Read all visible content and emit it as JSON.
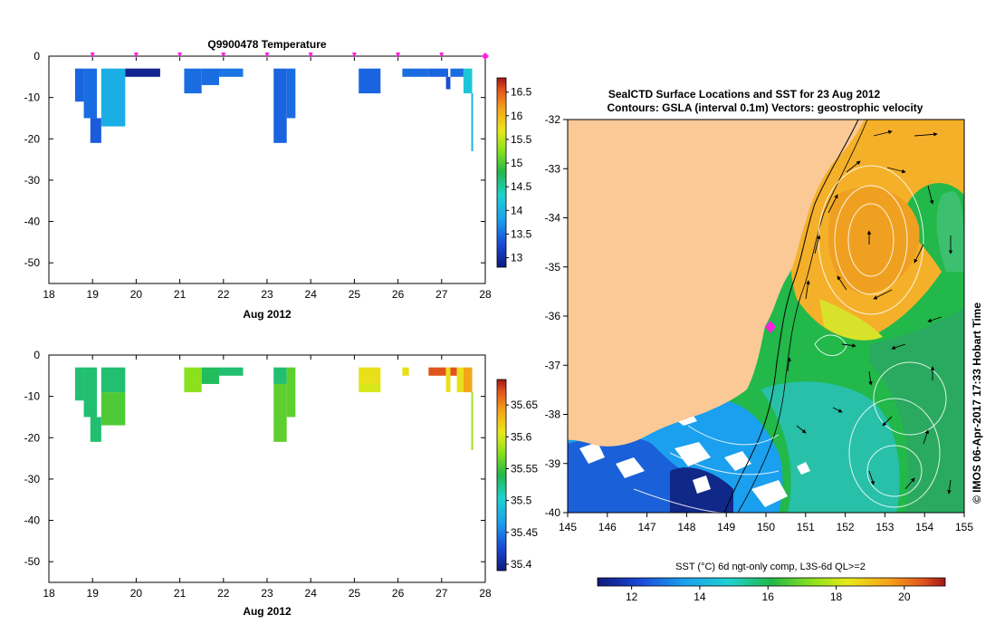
{
  "chart_data": [
    {
      "type": "heatmap",
      "id": "temperature",
      "title": "Q9900478  Temperature",
      "xlabel": "Aug 2012",
      "ylabel": "",
      "xlim": [
        18,
        28
      ],
      "ylim": [
        -55,
        0
      ],
      "xticks": [
        18,
        19,
        20,
        21,
        22,
        23,
        24,
        25,
        26,
        27,
        28
      ],
      "yticks": [
        0,
        -10,
        -20,
        -30,
        -40,
        -50
      ],
      "profile_markers_x": [
        19,
        20,
        21,
        22,
        23,
        24,
        25,
        26,
        27,
        28
      ],
      "colorbar": {
        "min": 12.8,
        "max": 16.8,
        "ticks": [
          13,
          13.5,
          14,
          14.5,
          15,
          15.5,
          16,
          16.5
        ]
      },
      "cells": [
        {
          "x0": 18.6,
          "x1": 18.8,
          "y0": -3,
          "y1": -11,
          "v": 13.45
        },
        {
          "x0": 18.8,
          "x1": 19.1,
          "y0": -3,
          "y1": -15,
          "v": 13.5
        },
        {
          "x0": 18.95,
          "x1": 19.2,
          "y0": -15,
          "y1": -21,
          "v": 13.4
        },
        {
          "x0": 19.2,
          "x1": 19.75,
          "y0": -3,
          "y1": -17,
          "v": 13.95
        },
        {
          "x0": 19.75,
          "x1": 20.55,
          "y0": -3,
          "y1": -5,
          "v": 12.9
        },
        {
          "x0": 21.1,
          "x1": 21.5,
          "y0": -3,
          "y1": -9,
          "v": 13.5
        },
        {
          "x0": 21.5,
          "x1": 21.9,
          "y0": -3,
          "y1": -7,
          "v": 13.5
        },
        {
          "x0": 21.9,
          "x1": 22.45,
          "y0": -3,
          "y1": -5,
          "v": 13.55
        },
        {
          "x0": 23.15,
          "x1": 23.45,
          "y0": -3,
          "y1": -21,
          "v": 13.45
        },
        {
          "x0": 23.45,
          "x1": 23.65,
          "y0": -3,
          "y1": -15,
          "v": 13.5
        },
        {
          "x0": 25.1,
          "x1": 25.6,
          "y0": -3,
          "y1": -9,
          "v": 13.45
        },
        {
          "x0": 26.1,
          "x1": 26.7,
          "y0": -3,
          "y1": -5,
          "v": 13.5
        },
        {
          "x0": 26.7,
          "x1": 27.15,
          "y0": -3,
          "y1": -5,
          "v": 13.45
        },
        {
          "x0": 27.1,
          "x1": 27.2,
          "y0": -5,
          "y1": -8,
          "v": 13.3
        },
        {
          "x0": 27.2,
          "x1": 27.5,
          "y0": -3,
          "y1": -5,
          "v": 13.5
        },
        {
          "x0": 27.5,
          "x1": 27.7,
          "y0": -3,
          "y1": -9,
          "v": 14.2
        },
        {
          "x0": 27.68,
          "x1": 27.72,
          "y0": -9,
          "y1": -23,
          "v": 13.95
        }
      ]
    },
    {
      "type": "heatmap",
      "id": "salinity",
      "title": "",
      "xlabel": "Aug 2012",
      "ylabel": "",
      "xlim": [
        18,
        28
      ],
      "ylim": [
        -55,
        0
      ],
      "xticks": [
        18,
        19,
        20,
        21,
        22,
        23,
        24,
        25,
        26,
        27,
        28
      ],
      "yticks": [
        0,
        -10,
        -20,
        -30,
        -40,
        -50
      ],
      "colorbar": {
        "min": 35.39,
        "max": 35.69,
        "ticks": [
          35.4,
          35.45,
          35.5,
          35.55,
          35.6,
          35.65
        ]
      },
      "cells": [
        {
          "x0": 18.6,
          "x1": 18.8,
          "y0": -3,
          "y1": -11,
          "v": 35.53
        },
        {
          "x0": 18.8,
          "x1": 19.1,
          "y0": -3,
          "y1": -15,
          "v": 35.53
        },
        {
          "x0": 18.95,
          "x1": 19.2,
          "y0": -15,
          "y1": -21,
          "v": 35.53
        },
        {
          "x0": 19.2,
          "x1": 19.75,
          "y0": -3,
          "y1": -9,
          "v": 35.53
        },
        {
          "x0": 19.2,
          "x1": 19.75,
          "y0": -9,
          "y1": -17,
          "v": 35.555
        },
        {
          "x0": 21.1,
          "x1": 21.5,
          "y0": -3,
          "y1": -9,
          "v": 35.575
        },
        {
          "x0": 21.5,
          "x1": 21.9,
          "y0": -3,
          "y1": -7,
          "v": 35.535
        },
        {
          "x0": 21.9,
          "x1": 22.45,
          "y0": -3,
          "y1": -5,
          "v": 35.53
        },
        {
          "x0": 23.15,
          "x1": 23.45,
          "y0": -3,
          "y1": -7,
          "v": 35.53
        },
        {
          "x0": 23.15,
          "x1": 23.45,
          "y0": -7,
          "y1": -21,
          "v": 35.56
        },
        {
          "x0": 23.45,
          "x1": 23.65,
          "y0": -3,
          "y1": -15,
          "v": 35.56
        },
        {
          "x0": 25.1,
          "x1": 25.6,
          "y0": -3,
          "y1": -7,
          "v": 35.61
        },
        {
          "x0": 25.1,
          "x1": 25.6,
          "y0": -7,
          "y1": -9,
          "v": 35.6
        },
        {
          "x0": 26.1,
          "x1": 26.25,
          "y0": -3,
          "y1": -5,
          "v": 35.61
        },
        {
          "x0": 26.7,
          "x1": 27.1,
          "y0": -3,
          "y1": -5,
          "v": 35.67
        },
        {
          "x0": 27.1,
          "x1": 27.2,
          "y0": -3,
          "y1": -9,
          "v": 35.61
        },
        {
          "x0": 27.2,
          "x1": 27.35,
          "y0": -3,
          "y1": -5,
          "v": 35.67
        },
        {
          "x0": 27.35,
          "x1": 27.5,
          "y0": -3,
          "y1": -9,
          "v": 35.61
        },
        {
          "x0": 27.5,
          "x1": 27.7,
          "y0": -3,
          "y1": -9,
          "v": 35.64
        },
        {
          "x0": 27.68,
          "x1": 27.72,
          "y0": -9,
          "y1": -23,
          "v": 35.58
        }
      ]
    },
    {
      "type": "heatmap",
      "id": "sst-map",
      "title": "SealCTD Surface Locations and SST for 23 Aug 2012",
      "subtitle": "Contours: GSLA (interval 0.1m) Vectors: geostrophic velocity",
      "colorbar_label": "SST (°C) 6d ngt-only comp, L3S-6d QL>=2",
      "colorbar": {
        "min": 11,
        "max": 21.2,
        "ticks": [
          12,
          14,
          16,
          18,
          20
        ]
      },
      "xlim": [
        145,
        155
      ],
      "ylim": [
        -40,
        -32
      ],
      "xticks": [
        145,
        146,
        147,
        148,
        149,
        150,
        151,
        152,
        153,
        154,
        155
      ],
      "yticks": [
        -32,
        -33,
        -34,
        -35,
        -36,
        -37,
        -38,
        -39,
        -40
      ],
      "seal_location": {
        "lon": 150.1,
        "lat": -36.2
      },
      "credit": "©  IMOS 06-Apr-2017 17:33 Hobart Time"
    }
  ]
}
